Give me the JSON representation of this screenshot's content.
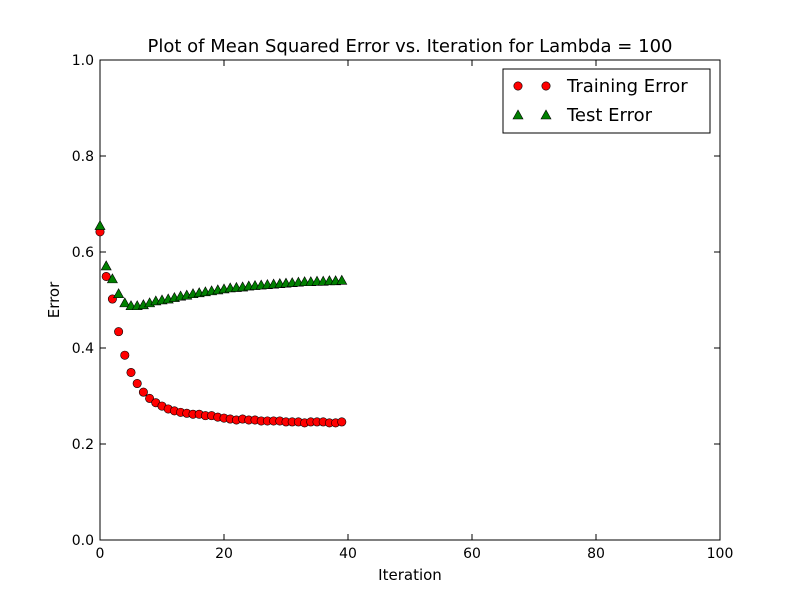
{
  "chart_data": {
    "type": "scatter",
    "title": "Plot of Mean Squared Error vs. Iteration for Lambda = 100",
    "xlabel": "Iteration",
    "ylabel": "Error",
    "xlim": [
      0,
      100
    ],
    "ylim": [
      0.0,
      1.0
    ],
    "xticks": [
      "0",
      "20",
      "40",
      "60",
      "80",
      "100"
    ],
    "yticks": [
      "0.0",
      "0.2",
      "0.4",
      "0.6",
      "0.8",
      "1.0"
    ],
    "grid": false,
    "legend_position": "top-right",
    "x": [
      0,
      1,
      2,
      3,
      4,
      5,
      6,
      7,
      8,
      9,
      10,
      11,
      12,
      13,
      14,
      15,
      16,
      17,
      18,
      19,
      20,
      21,
      22,
      23,
      24,
      25,
      26,
      27,
      28,
      29,
      30,
      31,
      32,
      33,
      34,
      35,
      36,
      37,
      38,
      39
    ],
    "series": [
      {
        "name": "Training Error",
        "marker": "circle",
        "color": "#ff0000",
        "values": [
          0.642,
          0.549,
          0.502,
          0.434,
          0.385,
          0.349,
          0.326,
          0.308,
          0.295,
          0.286,
          0.279,
          0.273,
          0.269,
          0.266,
          0.264,
          0.262,
          0.262,
          0.259,
          0.259,
          0.256,
          0.254,
          0.252,
          0.25,
          0.252,
          0.25,
          0.25,
          0.248,
          0.248,
          0.248,
          0.248,
          0.246,
          0.246,
          0.246,
          0.244,
          0.246,
          0.246,
          0.246,
          0.244,
          0.244,
          0.246
        ]
      },
      {
        "name": "Test Error",
        "marker": "triangle",
        "color": "#008000",
        "values": [
          0.655,
          0.571,
          0.544,
          0.513,
          0.494,
          0.488,
          0.488,
          0.49,
          0.494,
          0.498,
          0.5,
          0.502,
          0.505,
          0.508,
          0.51,
          0.513,
          0.515,
          0.517,
          0.519,
          0.521,
          0.523,
          0.525,
          0.526,
          0.527,
          0.529,
          0.53,
          0.531,
          0.532,
          0.533,
          0.534,
          0.535,
          0.536,
          0.537,
          0.538,
          0.538,
          0.539,
          0.539,
          0.54,
          0.54,
          0.541
        ]
      }
    ]
  }
}
